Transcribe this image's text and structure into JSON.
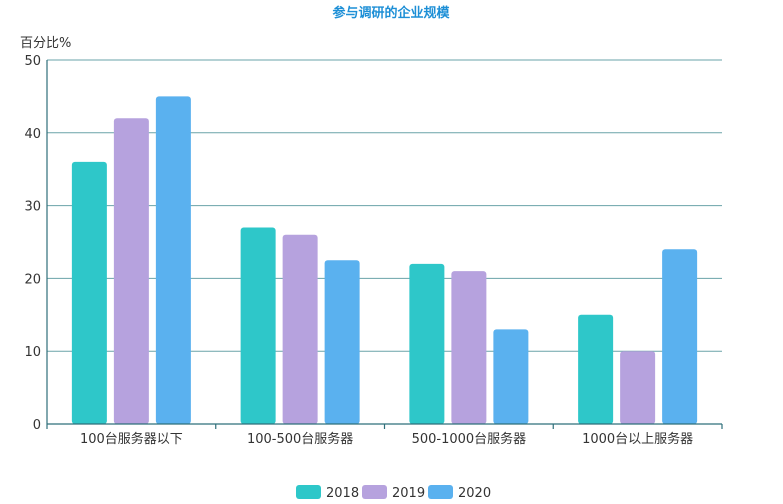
{
  "chart_data": {
    "type": "bar",
    "title": "参与调研的企业规模",
    "ylabel": "百分比%",
    "ylim": [
      0,
      50
    ],
    "yticks": [
      0,
      10,
      20,
      30,
      40,
      50
    ],
    "categories": [
      "100台服务器以下",
      "100-500台服务器",
      "500-1000台服务器",
      "1000台以上服务器"
    ],
    "series": [
      {
        "name": "2018",
        "color": "#2ec7c9",
        "values": [
          36,
          27,
          22,
          15
        ]
      },
      {
        "name": "2019",
        "color": "#b6a2de",
        "values": [
          42,
          26,
          21,
          10
        ]
      },
      {
        "name": "2020",
        "color": "#5ab1ef",
        "values": [
          45,
          22.5,
          13,
          24
        ]
      }
    ],
    "grid": true,
    "legend_position": "bottom-center"
  }
}
